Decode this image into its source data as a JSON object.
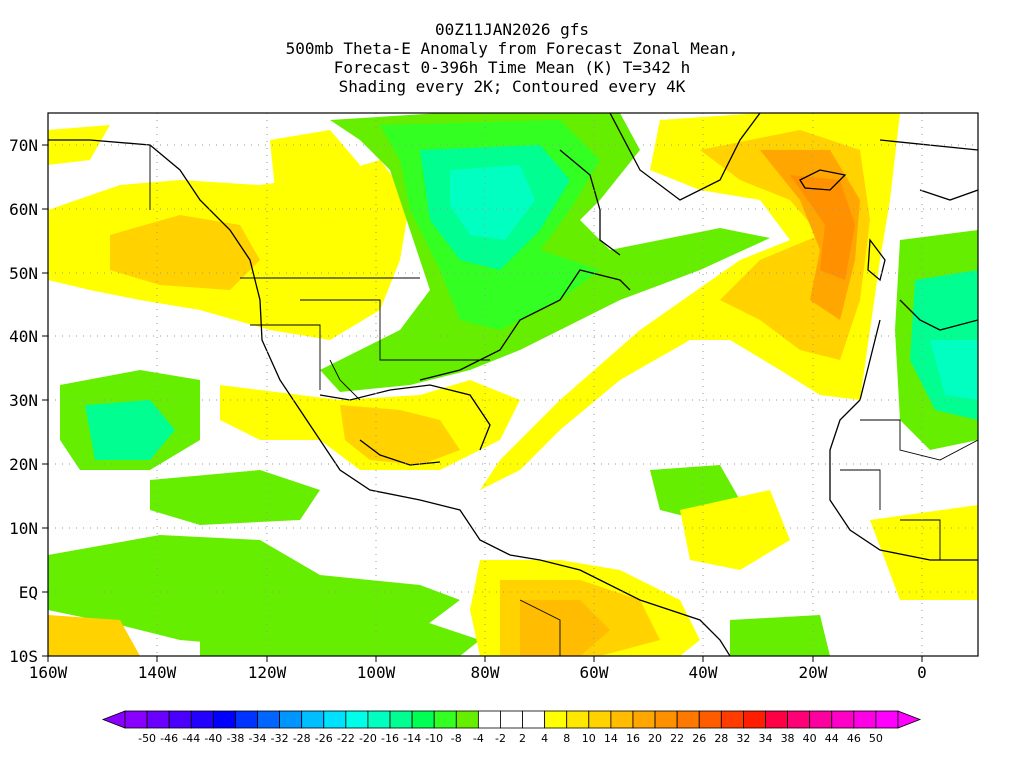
{
  "title_lines": [
    "00Z11JAN2026 gfs",
    "500mb Theta-E Anomaly from Forecast Zonal Mean,",
    "Forecast 0-396h Time Mean (K) T=342 h",
    "Shading every 2K; Contoured every 4K"
  ],
  "axes": {
    "lat_labels": [
      "70N",
      "60N",
      "50N",
      "40N",
      "30N",
      "20N",
      "10N",
      "EQ",
      "10S"
    ],
    "lat_values": [
      70,
      60,
      50,
      40,
      30,
      20,
      10,
      0,
      -10
    ],
    "lon_labels": [
      "160W",
      "140W",
      "120W",
      "100W",
      "80W",
      "60W",
      "40W",
      "20W",
      "0"
    ],
    "lon_values": [
      -160,
      -140,
      -120,
      -100,
      -80,
      -60,
      -40,
      -20,
      0
    ],
    "lon_range": [
      -160,
      10
    ],
    "lat_range": [
      -10,
      75
    ]
  },
  "colorbar": {
    "labels": [
      "-50",
      "-46",
      "-44",
      "-40",
      "-38",
      "-34",
      "-32",
      "-28",
      "-26",
      "-22",
      "-20",
      "-16",
      "-14",
      "-10",
      "-8",
      "-4",
      "-2",
      "2",
      "4",
      "8",
      "10",
      "14",
      "16",
      "20",
      "22",
      "26",
      "28",
      "32",
      "34",
      "38",
      "40",
      "44",
      "46",
      "50"
    ],
    "colors": [
      "#8a00ff",
      "#6a00ff",
      "#4b00ff",
      "#2400ff",
      "#0000ff",
      "#0033ff",
      "#0066ff",
      "#0096ff",
      "#00beff",
      "#00e0ff",
      "#00ffe8",
      "#00ffc0",
      "#00ff90",
      "#00ff55",
      "#33ff22",
      "#66ee00",
      "#ffffff",
      "#ffffff",
      "#ffffff",
      "#ffff00",
      "#ffe800",
      "#ffd200",
      "#ffbc00",
      "#ffa600",
      "#ff9000",
      "#ff7800",
      "#ff5c00",
      "#ff3c00",
      "#ff1e00",
      "#ff0044",
      "#ff0077",
      "#ff00a0",
      "#ff00c8",
      "#ff00e6",
      "#ff00ff"
    ]
  }
}
